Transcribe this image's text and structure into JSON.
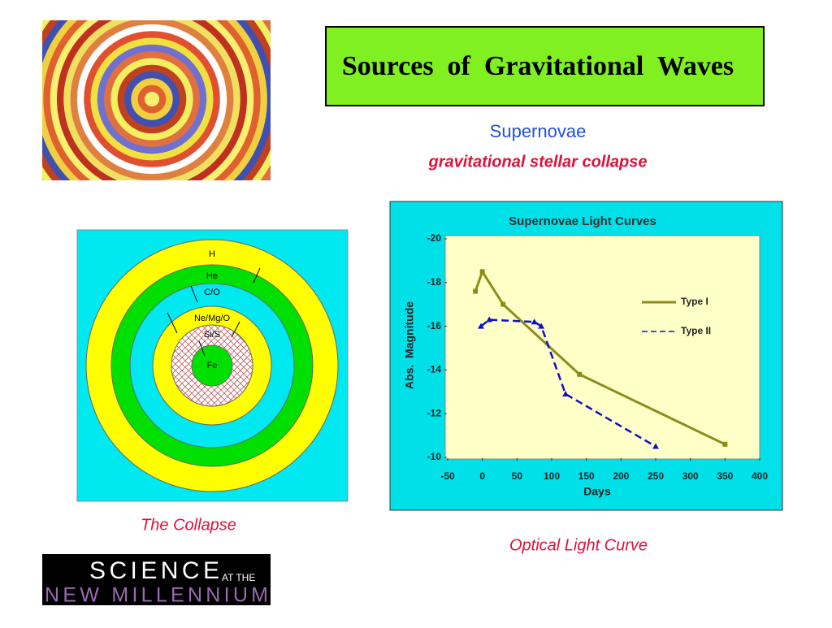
{
  "slide": {
    "title": "Sources  of  Gravitational  Waves",
    "heading": "Supernovae",
    "subheading": "gravitational stellar collapse",
    "collapse_caption": "The Collapse",
    "curve_caption": "Optical Light Curve",
    "logo": {
      "science": "SCIENCE",
      "at_the": "AT THE",
      "millennium": "NEW MILLENNIUM"
    }
  },
  "diagram": {
    "layers": [
      "H",
      "He",
      "C/O",
      "Ne/Mg/O",
      "Si/S",
      "Fe"
    ]
  },
  "chart_data": {
    "type": "line",
    "title": "Supernovae Light Curves",
    "xlabel": "Days",
    "ylabel": "Abs.  Magnitude",
    "xlim": [
      -50,
      400
    ],
    "xticks": [
      -50,
      0,
      50,
      100,
      150,
      200,
      250,
      300,
      350,
      400
    ],
    "ylim": [
      -10,
      -20
    ],
    "yticks": [
      -20,
      -18,
      -16,
      -14,
      -12,
      -10
    ],
    "series": [
      {
        "name": "Type I",
        "color": "#8c8c1a",
        "x": [
          -10,
          0,
          30,
          140,
          350
        ],
        "values": [
          -17.6,
          -18.5,
          -17.0,
          -13.8,
          -10.6
        ]
      },
      {
        "name": "Type II",
        "color": "#1010c8",
        "x": [
          -2,
          10,
          75,
          85,
          120,
          250
        ],
        "values": [
          -16.0,
          -16.3,
          -16.2,
          -16.0,
          -12.9,
          -10.5
        ]
      }
    ]
  }
}
